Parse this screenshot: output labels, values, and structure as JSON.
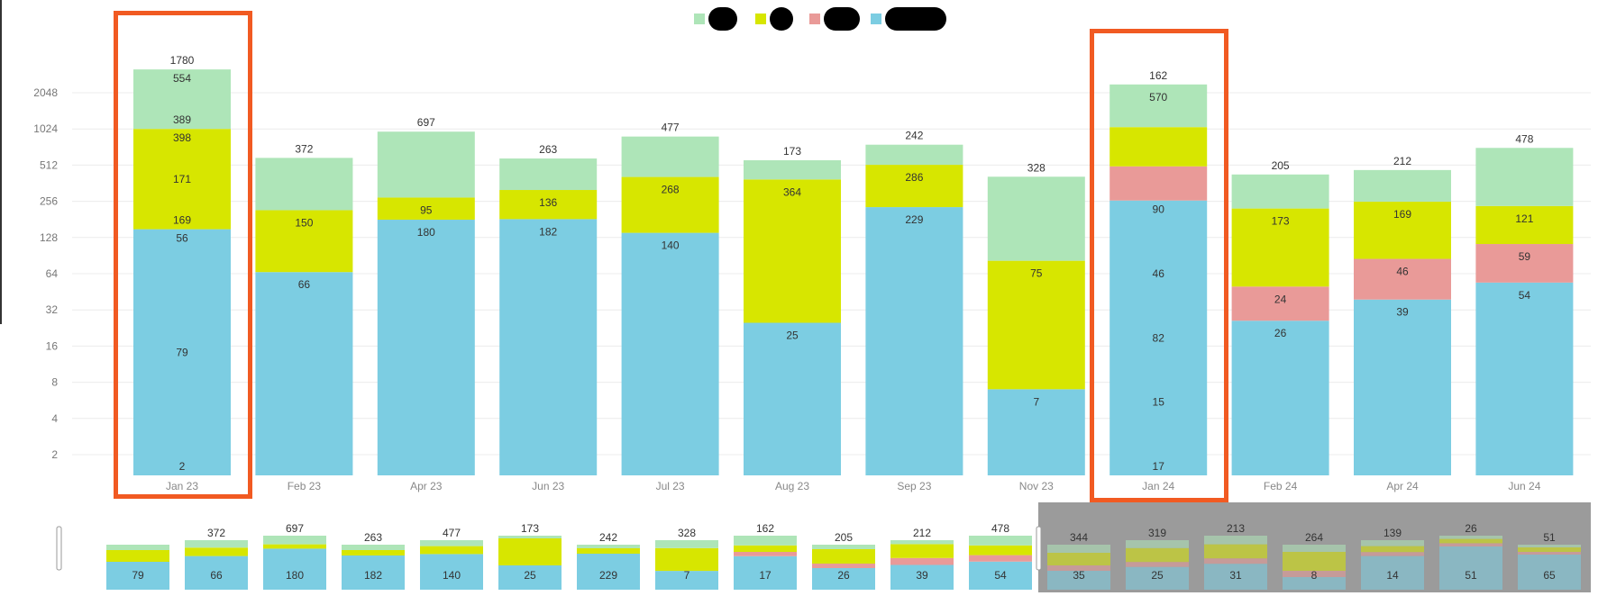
{
  "legend": [
    {
      "color": "#aee5b8",
      "label": ""
    },
    {
      "color": "#d7e600",
      "label": ""
    },
    {
      "color": "#e99a98",
      "label": ""
    },
    {
      "color": "#7ccde2",
      "label": ""
    }
  ],
  "chart_data": {
    "type": "bar",
    "stacked": true,
    "scale": "log2",
    "ylim": [
      1,
      4096
    ],
    "y_ticks": [
      2,
      4,
      8,
      16,
      32,
      64,
      128,
      256,
      512,
      1024,
      2048
    ],
    "title": "",
    "xlabel": "",
    "ylabel": "",
    "grid": true,
    "legend_position": "top-center",
    "series_colors": [
      "#7ccde2",
      "#e99a98",
      "#d7e600",
      "#aee5b8"
    ],
    "bars": [
      {
        "label": "Jan 23",
        "total": "1780",
        "highlighted": true,
        "segments": [
          {
            "series": 0,
            "top": 150,
            "labels": [
              "2",
              "79",
              "56"
            ]
          },
          {
            "series": 2,
            "top": 1024,
            "labels": [
              "169",
              "171",
              "398"
            ]
          },
          {
            "series": 3,
            "top": 3200,
            "labels": [
              "389",
              "554"
            ]
          }
        ]
      },
      {
        "label": "Feb 23",
        "total": "372",
        "segments": [
          {
            "series": 0,
            "top": 66,
            "labels": [
              "66"
            ]
          },
          {
            "series": 2,
            "top": 216,
            "labels": [
              "150"
            ]
          },
          {
            "series": 3,
            "top": 588,
            "labels": []
          }
        ]
      },
      {
        "label": "Apr 23",
        "total": "697",
        "segments": [
          {
            "series": 0,
            "top": 180,
            "labels": [
              "180"
            ]
          },
          {
            "series": 2,
            "top": 275,
            "labels": [
              "95"
            ]
          },
          {
            "series": 3,
            "top": 972,
            "labels": []
          }
        ]
      },
      {
        "label": "Jun 23",
        "total": "263",
        "segments": [
          {
            "series": 0,
            "top": 182,
            "labels": [
              "182"
            ]
          },
          {
            "series": 2,
            "top": 318,
            "labels": [
              "136"
            ]
          },
          {
            "series": 3,
            "top": 581,
            "labels": []
          }
        ]
      },
      {
        "label": "Jul 23",
        "total": "477",
        "segments": [
          {
            "series": 0,
            "top": 140,
            "labels": [
              "140"
            ]
          },
          {
            "series": 2,
            "top": 408,
            "labels": [
              "268"
            ]
          },
          {
            "series": 3,
            "top": 885,
            "labels": []
          }
        ]
      },
      {
        "label": "Aug 23",
        "total": "173",
        "segments": [
          {
            "series": 0,
            "top": 25,
            "labels": [
              "25"
            ]
          },
          {
            "series": 2,
            "top": 389,
            "labels": [
              "364"
            ]
          },
          {
            "series": 3,
            "top": 562,
            "labels": []
          }
        ]
      },
      {
        "label": "Sep 23",
        "total": "242",
        "segments": [
          {
            "series": 0,
            "top": 229,
            "labels": [
              "229"
            ]
          },
          {
            "series": 2,
            "top": 515,
            "labels": [
              "286"
            ]
          },
          {
            "series": 3,
            "top": 757,
            "labels": []
          }
        ]
      },
      {
        "label": "Nov 23",
        "total": "328",
        "segments": [
          {
            "series": 0,
            "top": 7,
            "labels": [
              "7"
            ]
          },
          {
            "series": 2,
            "top": 82,
            "labels": [
              "75"
            ]
          },
          {
            "series": 3,
            "top": 410,
            "labels": []
          }
        ]
      },
      {
        "label": "Jan 24",
        "total": "162",
        "highlighted": true,
        "segments": [
          {
            "series": 0,
            "top": 260,
            "labels": [
              "17",
              "15",
              "82",
              "46",
              "90"
            ]
          },
          {
            "series": 1,
            "top": 500,
            "labels": []
          },
          {
            "series": 2,
            "top": 1060,
            "labels": []
          },
          {
            "series": 3,
            "top": 2400,
            "labels": [
              "570"
            ]
          }
        ]
      },
      {
        "label": "Feb 24",
        "total": "205",
        "segments": [
          {
            "series": 0,
            "top": 26,
            "labels": [
              "26"
            ]
          },
          {
            "series": 1,
            "top": 50,
            "labels": [
              "24"
            ]
          },
          {
            "series": 2,
            "top": 223,
            "labels": [
              "173"
            ]
          },
          {
            "series": 3,
            "top": 428,
            "labels": []
          }
        ]
      },
      {
        "label": "Apr 24",
        "total": "212",
        "segments": [
          {
            "series": 0,
            "top": 39,
            "labels": [
              "39"
            ]
          },
          {
            "series": 1,
            "top": 85,
            "labels": [
              "46"
            ]
          },
          {
            "series": 2,
            "top": 254,
            "labels": [
              "169"
            ]
          },
          {
            "series": 3,
            "top": 466,
            "labels": []
          }
        ]
      },
      {
        "label": "Jun 24",
        "total": "478",
        "segments": [
          {
            "series": 0,
            "top": 54,
            "labels": [
              "54"
            ]
          },
          {
            "series": 1,
            "top": 113,
            "labels": [
              "59"
            ]
          },
          {
            "series": 2,
            "top": 234,
            "labels": [
              "121"
            ]
          },
          {
            "series": 3,
            "top": 712,
            "labels": []
          }
        ]
      }
    ],
    "navigator": {
      "bars": [
        {
          "total": "",
          "fractions": [
            0.62,
            0,
            0.26,
            0.12
          ],
          "label": "79"
        },
        {
          "total": "372",
          "fractions": [
            0.68,
            0,
            0.17,
            0.15
          ],
          "label": "66"
        },
        {
          "total": "697",
          "fractions": [
            0.76,
            0,
            0.08,
            0.16
          ],
          "label": "180"
        },
        {
          "total": "263",
          "fractions": [
            0.76,
            0,
            0.12,
            0.12
          ],
          "label": "182"
        },
        {
          "total": "477",
          "fractions": [
            0.72,
            0,
            0.16,
            0.12
          ],
          "label": "140"
        },
        {
          "total": "173",
          "fractions": [
            0.45,
            0,
            0.5,
            0.05
          ],
          "label": "25"
        },
        {
          "total": "242",
          "fractions": [
            0.8,
            0,
            0.12,
            0.08
          ],
          "label": "229"
        },
        {
          "total": "328",
          "fractions": [
            0.38,
            0,
            0.46,
            0.16
          ],
          "label": "7"
        },
        {
          "total": "162",
          "fractions": [
            0.62,
            0.08,
            0.12,
            0.18
          ],
          "label": "17"
        },
        {
          "total": "205",
          "fractions": [
            0.48,
            0.1,
            0.32,
            0.1
          ],
          "label": "26"
        },
        {
          "total": "212",
          "fractions": [
            0.5,
            0.14,
            0.28,
            0.08
          ],
          "label": "39"
        },
        {
          "total": "478",
          "fractions": [
            0.52,
            0.12,
            0.18,
            0.18
          ],
          "label": "54"
        },
        {
          "total": "344",
          "fractions": [
            0.42,
            0.12,
            0.28,
            0.18
          ],
          "label": "35",
          "dimmed": true
        },
        {
          "total": "319",
          "fractions": [
            0.46,
            0.1,
            0.28,
            0.16
          ],
          "label": "25",
          "dimmed": true
        },
        {
          "total": "213",
          "fractions": [
            0.48,
            0.1,
            0.26,
            0.16
          ],
          "label": "31",
          "dimmed": true
        },
        {
          "total": "264",
          "fractions": [
            0.28,
            0.14,
            0.42,
            0.16
          ],
          "label": "8",
          "dimmed": true
        },
        {
          "total": "139",
          "fractions": [
            0.68,
            0.08,
            0.12,
            0.12
          ],
          "label": "14",
          "dimmed": true
        },
        {
          "total": "26",
          "fractions": [
            0.8,
            0.06,
            0.08,
            0.06
          ],
          "label": "51",
          "dimmed": true
        },
        {
          "total": "51",
          "fractions": [
            0.78,
            0.06,
            0.1,
            0.06
          ],
          "label": "65",
          "dimmed": true
        }
      ]
    }
  }
}
